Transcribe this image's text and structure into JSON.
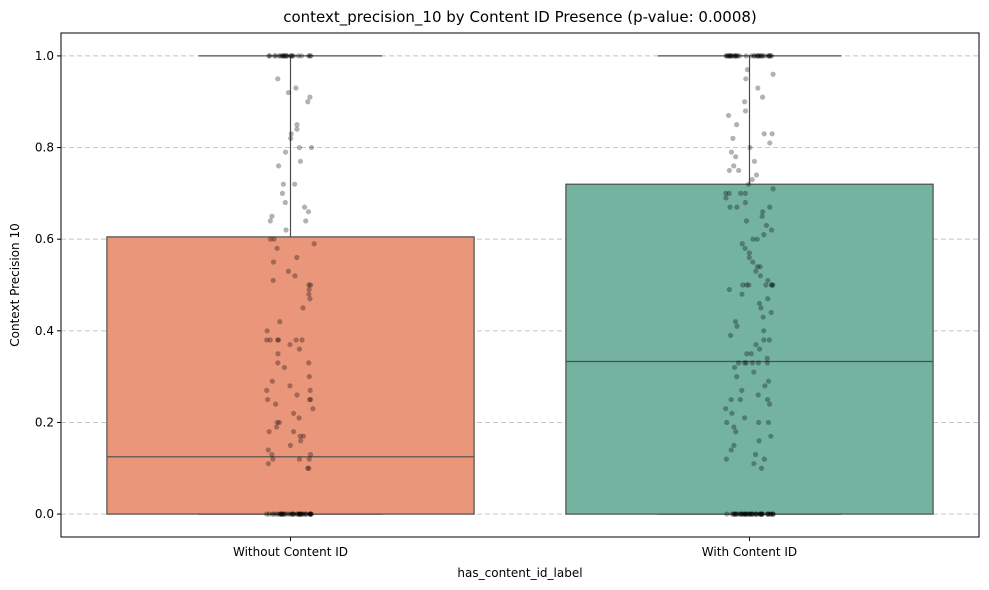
{
  "chart_data": {
    "type": "box",
    "title": "context_precision_10 by Content ID Presence (p-value: 0.0008)",
    "xlabel": "has_content_id_label",
    "ylabel": "Context Precision 10",
    "ylim": [
      -0.05,
      1.05
    ],
    "yticks": [
      "0.0",
      "0.2",
      "0.4",
      "0.6",
      "0.8",
      "1.0"
    ],
    "grid": "horizontal dashed",
    "colors": {
      "Without Content ID": "#e9967a",
      "With Content ID": "#73b3a0",
      "points": "#000000",
      "lines": "#4d4d4d",
      "grid": "#c8c8c8"
    },
    "categories": [
      "Without Content ID",
      "With Content ID"
    ],
    "boxes": [
      {
        "category": "Without Content ID",
        "min": 0.0,
        "q1": 0.0,
        "median": 0.125,
        "q3": 0.605,
        "max": 1.0
      },
      {
        "category": "With Content ID",
        "min": 0.0,
        "q1": 0.0,
        "median": 0.333,
        "q3": 0.72,
        "max": 1.0
      }
    ],
    "points_note": "individual observations shown as jittered black dots with alpha",
    "points": {
      "Without Content ID": {
        "at_zero": 40,
        "at_one": 22,
        "values": [
          0.93,
          0.95,
          0.91,
          0.92,
          0.9,
          0.85,
          0.84,
          0.83,
          0.82,
          0.8,
          0.8,
          0.79,
          0.77,
          0.76,
          0.72,
          0.72,
          0.7,
          0.68,
          0.67,
          0.66,
          0.65,
          0.64,
          0.64,
          0.62,
          0.6,
          0.6,
          0.59,
          0.58,
          0.56,
          0.55,
          0.53,
          0.52,
          0.51,
          0.5,
          0.5,
          0.49,
          0.48,
          0.47,
          0.45,
          0.42,
          0.4,
          0.38,
          0.38,
          0.38,
          0.38,
          0.38,
          0.38,
          0.37,
          0.36,
          0.35,
          0.33,
          0.33,
          0.32,
          0.3,
          0.29,
          0.28,
          0.27,
          0.27,
          0.26,
          0.25,
          0.25,
          0.25,
          0.24,
          0.23,
          0.22,
          0.21,
          0.2,
          0.2,
          0.19,
          0.18,
          0.18,
          0.17,
          0.17,
          0.16,
          0.15,
          0.14,
          0.13,
          0.13,
          0.12,
          0.12,
          0.12,
          0.11,
          0.1,
          0.1
        ]
      },
      "With Content ID": {
        "at_zero": 45,
        "at_one": 32,
        "values": [
          0.97,
          0.96,
          0.95,
          0.93,
          0.91,
          0.9,
          0.88,
          0.87,
          0.85,
          0.83,
          0.83,
          0.82,
          0.81,
          0.8,
          0.79,
          0.78,
          0.77,
          0.76,
          0.75,
          0.75,
          0.74,
          0.73,
          0.72,
          0.71,
          0.7,
          0.7,
          0.7,
          0.7,
          0.69,
          0.68,
          0.67,
          0.67,
          0.67,
          0.66,
          0.65,
          0.64,
          0.63,
          0.62,
          0.61,
          0.6,
          0.6,
          0.59,
          0.58,
          0.57,
          0.56,
          0.55,
          0.54,
          0.54,
          0.53,
          0.52,
          0.51,
          0.5,
          0.5,
          0.5,
          0.5,
          0.5,
          0.5,
          0.5,
          0.49,
          0.48,
          0.47,
          0.46,
          0.45,
          0.44,
          0.43,
          0.42,
          0.41,
          0.4,
          0.39,
          0.38,
          0.38,
          0.37,
          0.36,
          0.35,
          0.35,
          0.34,
          0.33,
          0.33,
          0.33,
          0.33,
          0.33,
          0.33,
          0.32,
          0.31,
          0.3,
          0.29,
          0.28,
          0.27,
          0.26,
          0.25,
          0.25,
          0.25,
          0.24,
          0.23,
          0.22,
          0.21,
          0.2,
          0.2,
          0.2,
          0.19,
          0.18,
          0.17,
          0.16,
          0.15,
          0.14,
          0.13,
          0.12,
          0.12,
          0.11,
          0.1
        ]
      }
    }
  }
}
